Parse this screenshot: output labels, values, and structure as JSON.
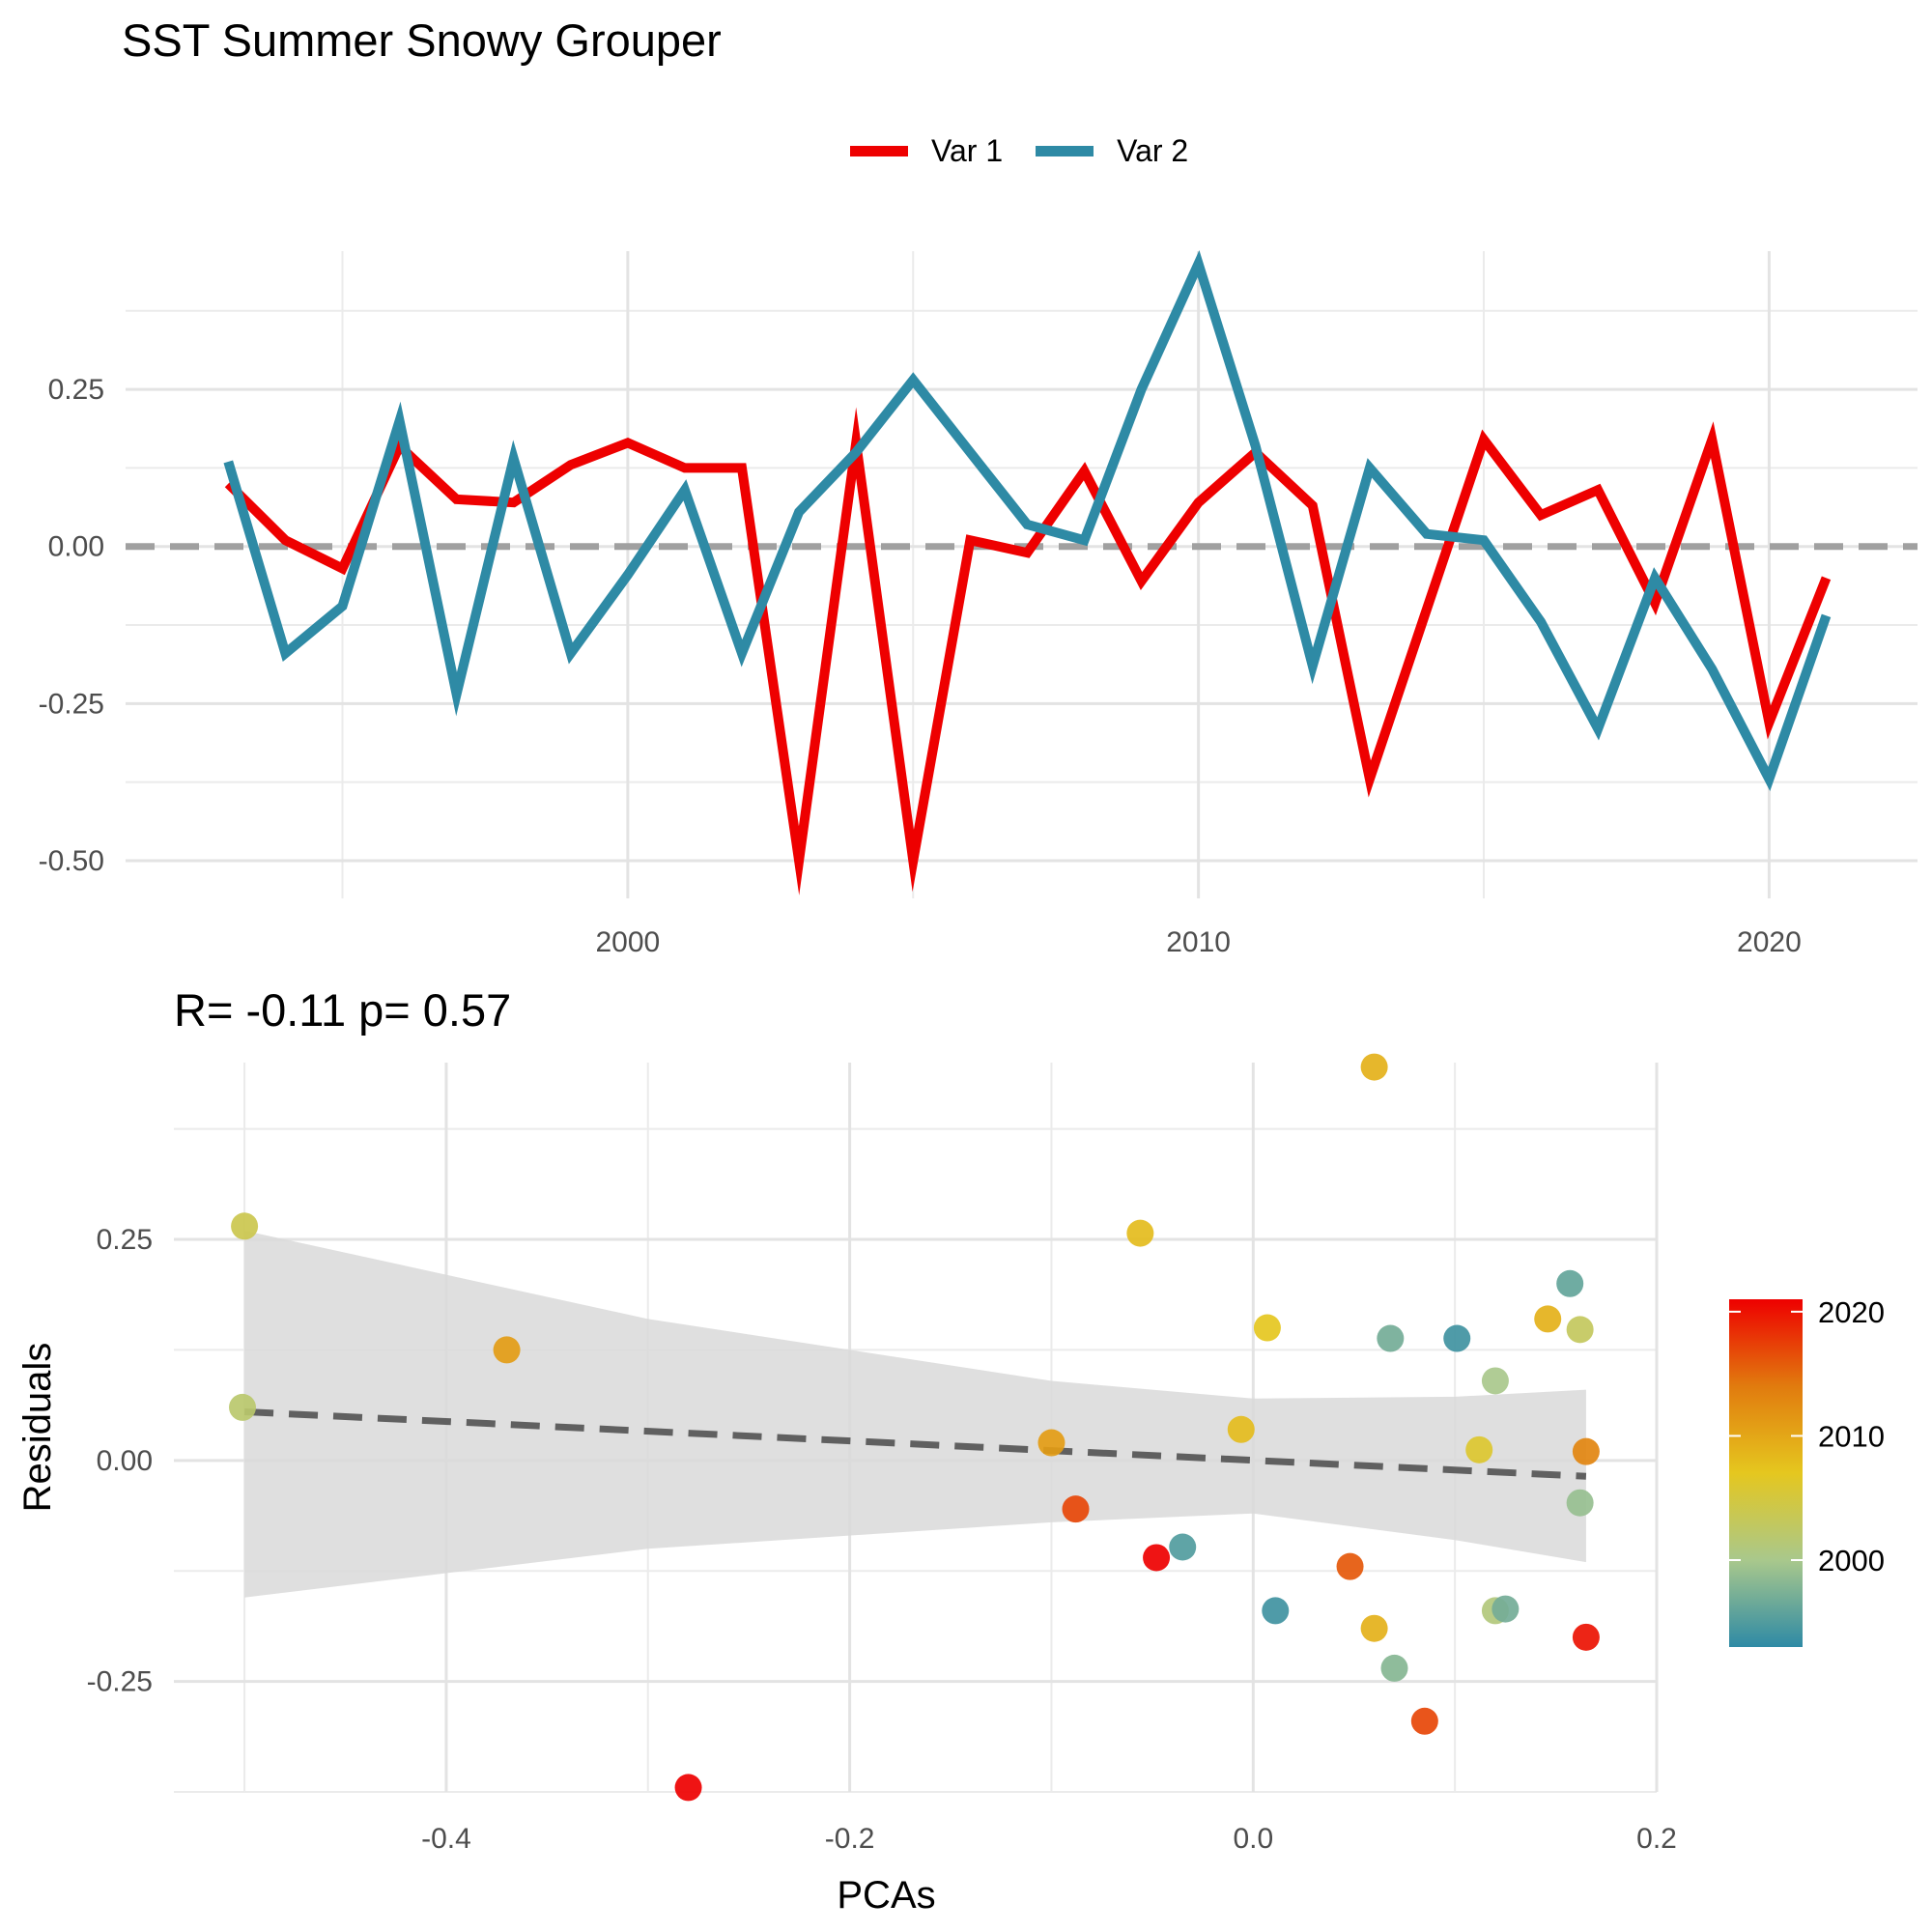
{
  "title": "SST Summer Snowy Grouper",
  "legend": {
    "items": [
      {
        "label": "Var 1",
        "color": "#EE0000"
      },
      {
        "label": "Var 2",
        "color": "#2E8AA5"
      }
    ]
  },
  "chart_data": [
    {
      "type": "line",
      "title": "",
      "xlabel": "",
      "ylabel": "",
      "xlim": [
        1991.2,
        2022.6
      ],
      "ylim": [
        -0.56,
        0.47
      ],
      "x_ticks": [
        2000,
        2010,
        2020
      ],
      "y_ticks": [
        -0.5,
        -0.25,
        0.0,
        0.25
      ],
      "y_tick_labels": [
        "-0.50",
        "-0.25",
        "0.00",
        "0.25"
      ],
      "reference_line": {
        "y": 0,
        "style": "dashed",
        "color": "#A0A0A0"
      },
      "grid": true,
      "x": [
        1993,
        1994,
        1995,
        1996,
        1997,
        1998,
        1999,
        2000,
        2001,
        2002,
        2003,
        2004,
        2005,
        2006,
        2007,
        2008,
        2009,
        2010,
        2011,
        2012,
        2013,
        2014,
        2015,
        2016,
        2017,
        2018,
        2019,
        2020,
        2021
      ],
      "series": [
        {
          "name": "Var 1",
          "color": "#EE0000",
          "values": [
            0.1,
            0.01,
            -0.035,
            0.16,
            0.075,
            0.07,
            0.13,
            0.165,
            0.125,
            0.125,
            -0.5,
            0.165,
            -0.5,
            0.01,
            -0.01,
            0.12,
            -0.055,
            0.07,
            0.15,
            0.065,
            -0.37,
            -0.1,
            0.17,
            0.05,
            0.09,
            -0.09,
            0.17,
            -0.28,
            -0.05
          ]
        },
        {
          "name": "Var 2",
          "color": "#2E8AA5",
          "values": [
            0.135,
            -0.17,
            -0.095,
            0.2,
            -0.235,
            0.14,
            -0.17,
            -0.045,
            0.09,
            -0.17,
            0.055,
            0.15,
            0.265,
            0.15,
            0.035,
            0.01,
            0.25,
            0.45,
            0.16,
            -0.19,
            0.125,
            0.02,
            0.01,
            -0.12,
            -0.29,
            -0.05,
            -0.195,
            -0.37,
            -0.11
          ]
        }
      ]
    },
    {
      "type": "scatter",
      "title": "R= -0.11  p= 0.57",
      "xlabel": "PCAs",
      "ylabel": "Residuals",
      "xlim": [
        -0.535,
        0.2
      ],
      "ylim": [
        -0.375,
        0.45
      ],
      "x_ticks": [
        -0.4,
        -0.2,
        0.0,
        0.2
      ],
      "x_tick_labels": [
        "-0.4",
        "-0.2",
        "0.0",
        "0.2"
      ],
      "y_ticks": [
        -0.25,
        0.0,
        0.25
      ],
      "y_tick_labels": [
        "-0.25",
        "0.00",
        "0.25"
      ],
      "grid": true,
      "colorbar": {
        "ticks": [
          2000,
          2010,
          2020
        ],
        "range": [
          1993,
          2021
        ],
        "colors": [
          "#2E8AA5",
          "#A9C88C",
          "#E5C71F",
          "#E17B0E",
          "#EE0000"
        ]
      },
      "fit_line": {
        "x": [
          -0.5,
          0.165
        ],
        "y": [
          0.055,
          -0.018
        ],
        "style": "dashed",
        "color": "#606060"
      },
      "confidence_band": {
        "x": [
          -0.5,
          -0.3,
          -0.1,
          0.0,
          0.1,
          0.165
        ],
        "upper": [
          0.26,
          0.16,
          0.09,
          0.07,
          0.072,
          0.08
        ],
        "lower": [
          -0.155,
          -0.1,
          -0.07,
          -0.06,
          -0.09,
          -0.115
        ]
      },
      "points": [
        {
          "x": -0.5,
          "y": 0.265,
          "year": 2004
        },
        {
          "x": -0.501,
          "y": 0.06,
          "year": 2002
        },
        {
          "x": -0.37,
          "y": 0.125,
          "year": 2011
        },
        {
          "x": -0.28,
          "y": -0.37,
          "year": 2021
        },
        {
          "x": -0.1,
          "y": 0.02,
          "year": 2011
        },
        {
          "x": -0.088,
          "y": -0.055,
          "year": 2017
        },
        {
          "x": -0.056,
          "y": 0.257,
          "year": 2008
        },
        {
          "x": -0.048,
          "y": -0.11,
          "year": 2021
        },
        {
          "x": -0.035,
          "y": -0.098,
          "year": 1995
        },
        {
          "x": -0.006,
          "y": 0.035,
          "year": 2008
        },
        {
          "x": 0.007,
          "y": 0.15,
          "year": 2007
        },
        {
          "x": 0.011,
          "y": -0.17,
          "year": 1994
        },
        {
          "x": 0.048,
          "y": -0.12,
          "year": 2016
        },
        {
          "x": 0.06,
          "y": 0.445,
          "year": 2009
        },
        {
          "x": 0.06,
          "y": -0.19,
          "year": 2009
        },
        {
          "x": 0.068,
          "y": 0.138,
          "year": 1997
        },
        {
          "x": 0.07,
          "y": -0.235,
          "year": 1998
        },
        {
          "x": 0.085,
          "y": -0.295,
          "year": 2017
        },
        {
          "x": 0.101,
          "y": 0.138,
          "year": 1994
        },
        {
          "x": 0.112,
          "y": 0.012,
          "year": 2006
        },
        {
          "x": 0.12,
          "y": 0.09,
          "year": 2000
        },
        {
          "x": 0.12,
          "y": -0.17,
          "year": 2001
        },
        {
          "x": 0.125,
          "y": -0.168,
          "year": 1997
        },
        {
          "x": 0.146,
          "y": 0.16,
          "year": 2009
        },
        {
          "x": 0.157,
          "y": 0.2,
          "year": 1996
        },
        {
          "x": 0.162,
          "y": 0.148,
          "year": 2003
        },
        {
          "x": 0.162,
          "y": -0.048,
          "year": 1999
        },
        {
          "x": 0.165,
          "y": 0.01,
          "year": 2013
        },
        {
          "x": 0.165,
          "y": -0.2,
          "year": 2020
        }
      ]
    }
  ]
}
